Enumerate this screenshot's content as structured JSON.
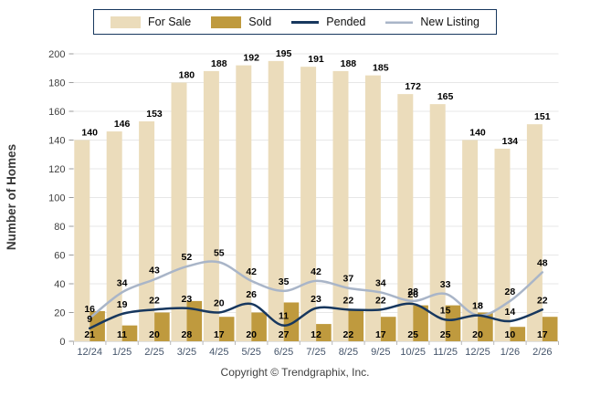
{
  "legend": {
    "items": [
      {
        "label": "For Sale",
        "swatch": "bar",
        "color": "#EBDCBB"
      },
      {
        "label": "Sold",
        "swatch": "bar",
        "color": "#BF9A3E"
      },
      {
        "label": "Pended",
        "swatch": "line",
        "color": "#17375E"
      },
      {
        "label": "New Listing",
        "swatch": "line",
        "color": "#A9B5C8"
      }
    ]
  },
  "footer": {
    "copyright": "Copyright © Trendgraphix, Inc."
  },
  "chart_data": {
    "type": "mixed-bar-line",
    "title": "",
    "xlabel": "",
    "ylabel": "Number of Homes",
    "ylim": [
      0,
      200
    ],
    "ytick_step": 20,
    "grid": true,
    "legend_position": "top",
    "categories": [
      "12/24",
      "1/25",
      "2/25",
      "3/25",
      "4/25",
      "5/25",
      "6/25",
      "7/25",
      "8/25",
      "9/25",
      "10/25",
      "11/25",
      "12/25",
      "1/26",
      "2/26"
    ],
    "series": [
      {
        "name": "For Sale",
        "type": "bar",
        "color": "#EBDCBB",
        "values": [
          140,
          146,
          153,
          180,
          188,
          192,
          195,
          191,
          188,
          185,
          172,
          165,
          140,
          134,
          151
        ]
      },
      {
        "name": "Sold",
        "type": "bar",
        "color": "#BF9A3E",
        "values": [
          21,
          11,
          20,
          28,
          17,
          20,
          27,
          12,
          22,
          17,
          25,
          25,
          20,
          10,
          17
        ]
      },
      {
        "name": "Pended",
        "type": "line",
        "color": "#17375E",
        "values": [
          9,
          19,
          22,
          23,
          20,
          26,
          11,
          23,
          22,
          22,
          26,
          15,
          18,
          14,
          22
        ]
      },
      {
        "name": "New Listing",
        "type": "line",
        "color": "#A9B5C8",
        "values": [
          16,
          34,
          43,
          52,
          55,
          42,
          35,
          42,
          37,
          34,
          28,
          33,
          18,
          28,
          48
        ]
      }
    ]
  }
}
